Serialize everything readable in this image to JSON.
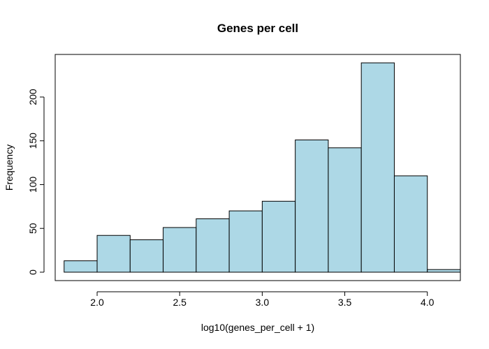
{
  "chart_data": {
    "type": "bar",
    "title": "Genes per cell",
    "xlabel": "log10(genes_per_cell + 1)",
    "ylabel": "Frequency",
    "bins": [
      {
        "x0": 1.8,
        "x1": 2.0,
        "count": 13
      },
      {
        "x0": 2.0,
        "x1": 2.2,
        "count": 42
      },
      {
        "x0": 2.2,
        "x1": 2.4,
        "count": 37
      },
      {
        "x0": 2.4,
        "x1": 2.6,
        "count": 51
      },
      {
        "x0": 2.6,
        "x1": 2.8,
        "count": 61
      },
      {
        "x0": 2.8,
        "x1": 3.0,
        "count": 70
      },
      {
        "x0": 3.0,
        "x1": 3.2,
        "count": 81
      },
      {
        "x0": 3.2,
        "x1": 3.4,
        "count": 151
      },
      {
        "x0": 3.4,
        "x1": 3.6,
        "count": 142
      },
      {
        "x0": 3.6,
        "x1": 3.8,
        "count": 239
      },
      {
        "x0": 3.8,
        "x1": 4.0,
        "count": 110
      },
      {
        "x0": 4.0,
        "x1": 4.2,
        "count": 3
      }
    ],
    "xlim": [
      1.746,
      4.2
    ],
    "ylim": [
      -9.6,
      248.6
    ],
    "xticks": [
      {
        "value": 2.0,
        "label": "2.0"
      },
      {
        "value": 2.5,
        "label": "2.5"
      },
      {
        "value": 3.0,
        "label": "3.0"
      },
      {
        "value": 3.5,
        "label": "3.5"
      },
      {
        "value": 4.0,
        "label": "4.0"
      }
    ],
    "yticks": [
      {
        "value": 0,
        "label": "0"
      },
      {
        "value": 50,
        "label": "50"
      },
      {
        "value": 100,
        "label": "100"
      },
      {
        "value": 150,
        "label": "150"
      },
      {
        "value": 200,
        "label": "200"
      }
    ],
    "bar_fill": "#add8e6",
    "bar_stroke": "#000000",
    "grid": false,
    "legend": false
  }
}
